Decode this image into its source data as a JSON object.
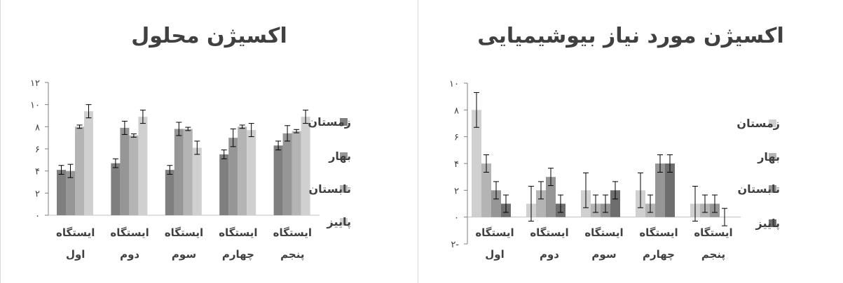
{
  "chart_data": [
    {
      "type": "bar",
      "title": "اکسیژن محلول",
      "categories": [
        [
          "ایستگاه",
          "اول"
        ],
        [
          "ایستگاه",
          "دوم"
        ],
        [
          "ایستگاه",
          "سوم"
        ],
        [
          "ایستگاه",
          "چهارم"
        ],
        [
          "ایستگاه",
          "پنجم"
        ]
      ],
      "ylim": [
        0,
        12
      ],
      "yticks": [
        "۰",
        "۲",
        "۴",
        "۶",
        "۸",
        "۱۰",
        "۱۲"
      ],
      "series": [
        {
          "name": "زمستان",
          "color": "#7f7f7f",
          "values": [
            4.1,
            4.7,
            4.1,
            5.5,
            6.3
          ],
          "errors": [
            0.4,
            0.4,
            0.4,
            0.4,
            0.4
          ]
        },
        {
          "name": "بهار",
          "color": "#969696",
          "values": [
            4.0,
            7.9,
            7.8,
            7.0,
            7.4
          ],
          "errors": [
            0.6,
            0.6,
            0.6,
            0.8,
            0.7
          ]
        },
        {
          "name": "تابستان",
          "color": "#b4b4b4",
          "values": [
            8.0,
            7.2,
            7.8,
            8.0,
            7.6
          ],
          "errors": [
            0.15,
            0.15,
            0.15,
            0.15,
            0.15
          ]
        },
        {
          "name": "پاییز",
          "color": "#d0d0d0",
          "values": [
            9.4,
            8.9,
            6.1,
            7.7,
            8.9
          ],
          "errors": [
            0.6,
            0.6,
            0.6,
            0.6,
            0.6
          ]
        }
      ]
    },
    {
      "type": "bar",
      "title": "اکسیژن مورد نیاز بیوشیمیایی",
      "categories": [
        [
          "ایستگاه",
          "اول"
        ],
        [
          "ایستگاه",
          "دوم"
        ],
        [
          "ایستگاه",
          "سوم"
        ],
        [
          "ایستگاه",
          "چهارم"
        ],
        [
          "ایستگاه",
          "پنجم"
        ]
      ],
      "ylim": [
        -2,
        10
      ],
      "yticks": [
        "۲-",
        "۰",
        "۲",
        "۴",
        "۶",
        "۸",
        "۱۰"
      ],
      "series": [
        {
          "name": "زمستان",
          "color": "#d0d0d0",
          "values": [
            8,
            1,
            2,
            2,
            1
          ],
          "errors": [
            1.3,
            1.3,
            1.3,
            1.3,
            1.3
          ]
        },
        {
          "name": "بهار",
          "color": "#b4b4b4",
          "values": [
            4,
            2,
            1,
            1,
            1
          ],
          "errors": [
            0.65,
            0.65,
            0.65,
            0.65,
            0.65
          ]
        },
        {
          "name": "تابستان",
          "color": "#969696",
          "values": [
            2,
            3,
            1,
            4,
            1
          ],
          "errors": [
            0.65,
            0.65,
            0.65,
            0.65,
            0.65
          ]
        },
        {
          "name": "پاییز",
          "color": "#6e6e6e",
          "values": [
            1,
            1,
            2,
            4,
            0
          ],
          "errors": [
            0.65,
            0.65,
            0.65,
            0.65,
            0.65
          ]
        }
      ]
    }
  ]
}
